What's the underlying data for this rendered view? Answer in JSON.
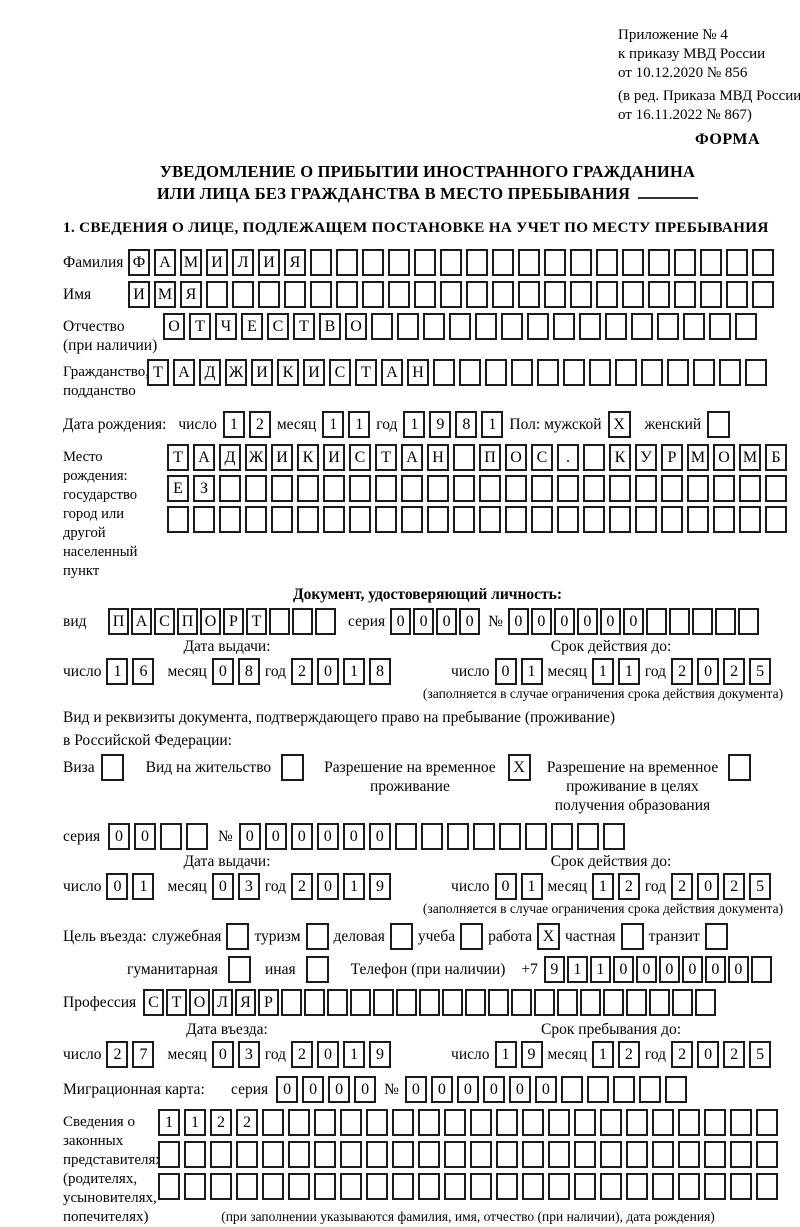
{
  "header": {
    "line1": "Приложение № 4",
    "line2": "к приказу МВД России",
    "line3": "от 10.12.2020 № 856",
    "line4": "(в ред. Приказа МВД России",
    "line5": "от 16.11.2022 № 867)",
    "forma": "ФОРМА"
  },
  "title": {
    "line1": "УВЕДОМЛЕНИЕ О ПРИБЫТИИ ИНОСТРАННОГО ГРАЖДАНИНА",
    "line2": "ИЛИ ЛИЦА БЕЗ ГРАЖДАНСТВА В МЕСТО ПРЕБЫВАНИЯ"
  },
  "section1_heading": "1. СВЕДЕНИЯ О ЛИЦЕ, ПОДЛЕЖАЩЕМ ПОСТАНОВКЕ НА УЧЕТ ПО МЕСТУ ПРЕБЫВАНИЯ",
  "common": {
    "day": "число",
    "month": "месяц",
    "year": "год",
    "series": "серия",
    "number_sign": "№"
  },
  "person": {
    "surname_label": "Фамилия",
    "surname": {
      "v": "ФАМИЛИЯ",
      "n": 25
    },
    "name_label": "Имя",
    "name": {
      "v": "ИМЯ",
      "n": 25
    },
    "patronymic_label": "Отчество",
    "patronymic_note": "(при наличии)",
    "patronymic": {
      "v": "ОТЧЕСТВО",
      "n": 23
    },
    "citizenship_label1": "Гражданство,",
    "citizenship_label2": "подданство",
    "citizenship": {
      "v": "ТАДЖИКИСТАН",
      "n": 24
    },
    "birth_date_label": "Дата рождения:",
    "birth_day": {
      "v": "12",
      "n": 2
    },
    "birth_month": {
      "v": "11",
      "n": 2
    },
    "birth_year": {
      "v": "1981",
      "n": 4
    },
    "sex_label": "Пол: мужской",
    "sex_male": "X",
    "sex_female_label": "женский",
    "sex_female": "",
    "birth_place_label1": "Место рождения:",
    "birth_place_label2": "государство",
    "birth_place_label3": "город или другой",
    "birth_place_label4": "населенный пункт",
    "birth_place_row1": {
      "v": "ТАДЖИКИСТАН ПОС. КУРМОМБ",
      "n": 24
    },
    "birth_place_row2": {
      "v": "ЕЗ",
      "n": 24
    },
    "birth_place_row3": {
      "v": "",
      "n": 24
    }
  },
  "identity_doc": {
    "heading": "Документ, удостоверяющий личность:",
    "kind_label": "вид",
    "kind": {
      "v": "ПАСПОРТ",
      "n": 10
    },
    "series": {
      "v": "0000",
      "n": 4
    },
    "number": {
      "v": "000000",
      "n": 11
    },
    "issue_heading": "Дата выдачи:",
    "issue_day": {
      "v": "16",
      "n": 2
    },
    "issue_month": {
      "v": "08",
      "n": 2
    },
    "issue_year": {
      "v": "2018",
      "n": 4
    },
    "valid_heading": "Срок действия до:",
    "valid_day": {
      "v": "01",
      "n": 2
    },
    "valid_month": {
      "v": "11",
      "n": 2
    },
    "valid_year": {
      "v": "2025",
      "n": 4
    },
    "note": "(заполняется в случае ограничения срока действия документа)"
  },
  "residence_doc": {
    "intro1": "Вид и реквизиты документа, подтверждающего право на пребывание (проживание)",
    "intro2": "в Российской Федерации:",
    "opt_visa_label": "Виза",
    "opt_visa": "",
    "opt_residence_label": "Вид на жительство",
    "opt_residence": "",
    "opt_rvp_label1": "Разрешение на временное",
    "opt_rvp_label2": "проживание",
    "opt_rvp": "X",
    "opt_rvp_edu_label1": "Разрешение на временное",
    "opt_rvp_edu_label2": "проживание в целях",
    "opt_rvp_edu_label3": "получения образования",
    "opt_rvp_edu": "",
    "series": {
      "v": "00",
      "n": 4
    },
    "number": {
      "v": "000000",
      "n": 15
    },
    "issue_heading": "Дата выдачи:",
    "issue_day": {
      "v": "01",
      "n": 2
    },
    "issue_month": {
      "v": "03",
      "n": 2
    },
    "issue_year": {
      "v": "2019",
      "n": 4
    },
    "valid_heading": "Срок действия до:",
    "valid_day": {
      "v": "01",
      "n": 2
    },
    "valid_month": {
      "v": "12",
      "n": 2
    },
    "valid_year": {
      "v": "2025",
      "n": 4
    },
    "note": "(заполняется в случае ограничения срока действия документа)"
  },
  "visit": {
    "label": "Цель въезда:",
    "opts": [
      {
        "label": "служебная",
        "checked": ""
      },
      {
        "label": "туризм",
        "checked": ""
      },
      {
        "label": "деловая",
        "checked": ""
      },
      {
        "label": "учеба",
        "checked": ""
      },
      {
        "label": "работа",
        "checked": "X"
      },
      {
        "label": "частная",
        "checked": ""
      },
      {
        "label": "транзит",
        "checked": ""
      },
      {
        "label": "гуманитарная",
        "checked": ""
      },
      {
        "label": "иная",
        "checked": ""
      }
    ],
    "phone_label": "Телефон (при наличии)",
    "phone_prefix": "+7",
    "phone": {
      "v": "911000000",
      "n": 10
    },
    "profession_label": "Профессия",
    "profession": {
      "v": "СТОЛЯР",
      "n": 25
    }
  },
  "entry": {
    "date_heading": "Дата въезда:",
    "day": {
      "v": "27",
      "n": 2
    },
    "month": {
      "v": "03",
      "n": 2
    },
    "year": {
      "v": "2019",
      "n": 4
    },
    "stay_heading": "Срок пребывания до:",
    "stay_day": {
      "v": "19",
      "n": 2
    },
    "stay_month": {
      "v": "12",
      "n": 2
    },
    "stay_year": {
      "v": "2025",
      "n": 4
    }
  },
  "migration_card": {
    "label": "Миграционная карта:",
    "series": {
      "v": "0000",
      "n": 4
    },
    "number": {
      "v": "000000",
      "n": 11
    }
  },
  "representatives": {
    "label1": "Сведения о",
    "label2": "законных",
    "label3": "представителях",
    "label4": "(родителях,",
    "label5": "усыновителях,",
    "label6": "попечителях)",
    "row1": {
      "v": "1122",
      "n": 24
    },
    "row2": {
      "v": "",
      "n": 24
    },
    "row3": {
      "v": "",
      "n": 24
    },
    "note": "(при заполнении указываются фамилия, имя, отчество (при наличии), дата рождения)"
  }
}
